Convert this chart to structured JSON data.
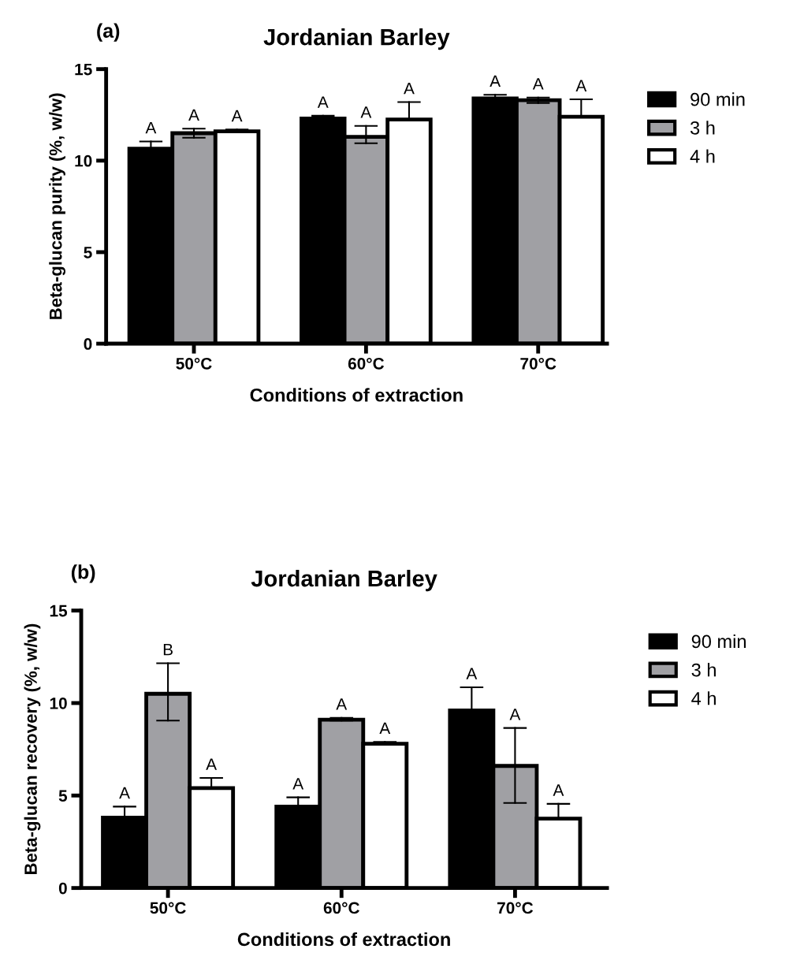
{
  "chart_data": [
    {
      "type": "bar",
      "title": "Jordanian Barley",
      "annotations": [
        "(a)"
      ],
      "xlabel": "Conditions of extraction",
      "ylabel": "Beta-glucan purity (%, w/w)",
      "categories": [
        "50°C",
        "60°C",
        "70°C"
      ],
      "ylim": [
        0,
        15
      ],
      "yticks": [
        0,
        5,
        10,
        15
      ],
      "legend": "right",
      "series": [
        {
          "name": "90 min",
          "color": "#000000",
          "values": [
            10.65,
            12.3,
            13.4
          ],
          "errors": [
            [
              10.65,
              11.05
            ],
            [
              12.3,
              12.45
            ],
            [
              13.4,
              13.6
            ]
          ],
          "value_labels": [
            "A",
            "A",
            "A"
          ]
        },
        {
          "name": "3 h",
          "color": "#a0a0a4",
          "values": [
            11.5,
            11.3,
            13.3
          ],
          "errors": [
            [
              11.25,
              11.75
            ],
            [
              10.95,
              11.9
            ],
            [
              13.15,
              13.45
            ]
          ],
          "value_labels": [
            "A",
            "A",
            "A"
          ]
        },
        {
          "name": "4 h",
          "color": "#ffffff",
          "values": [
            11.6,
            12.25,
            12.4
          ],
          "errors": [
            [
              11.6,
              11.7
            ],
            [
              12.25,
              13.2
            ],
            [
              12.4,
              13.35
            ]
          ],
          "value_labels": [
            "A",
            "A",
            "A"
          ]
        }
      ]
    },
    {
      "type": "bar",
      "title": "Jordanian Barley",
      "annotations": [
        "(b)"
      ],
      "xlabel": "Conditions of extraction",
      "ylabel": "Beta-glucan recovery (%, w/w)",
      "categories": [
        "50°C",
        "60°C",
        "70°C"
      ],
      "ylim": [
        0,
        15
      ],
      "yticks": [
        0,
        5,
        10,
        15
      ],
      "legend": "right",
      "series": [
        {
          "name": "90 min",
          "color": "#000000",
          "values": [
            3.8,
            4.4,
            9.6
          ],
          "errors": [
            [
              3.8,
              4.4
            ],
            [
              4.4,
              4.9
            ],
            [
              9.6,
              10.85
            ]
          ],
          "value_labels": [
            "A",
            "A",
            "A"
          ]
        },
        {
          "name": "3 h",
          "color": "#a0a0a4",
          "values": [
            10.5,
            9.1,
            6.6
          ],
          "errors": [
            [
              9.05,
              12.15
            ],
            [
              9.05,
              9.2
            ],
            [
              4.6,
              8.65
            ]
          ],
          "value_labels": [
            "B",
            "A",
            "A"
          ]
        },
        {
          "name": "4 h",
          "color": "#ffffff",
          "values": [
            5.4,
            7.8,
            3.75
          ],
          "errors": [
            [
              5.4,
              5.95
            ],
            [
              7.8,
              7.9
            ],
            [
              3.75,
              4.55
            ]
          ],
          "value_labels": [
            "A",
            "A",
            "A"
          ]
        }
      ]
    }
  ]
}
